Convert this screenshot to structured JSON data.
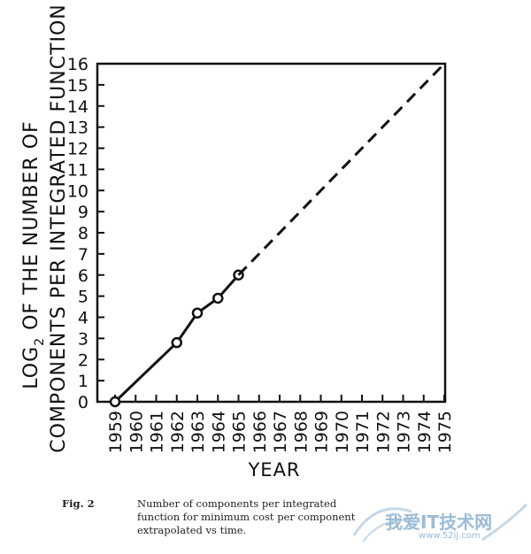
{
  "chart_data": {
    "type": "line",
    "title": "",
    "ylabel_line1": "LOG",
    "ylabel_sub": "2",
    "ylabel_line1_rest": " OF THE NUMBER OF",
    "ylabel_line2": "COMPONENTS PER INTEGRATED FUNCTION",
    "xlabel": "YEAR",
    "xlim": [
      1959,
      1975
    ],
    "ylim": [
      0,
      16
    ],
    "x_ticks": [
      "1959",
      "1960",
      "1961",
      "1962",
      "1963",
      "1964",
      "1965",
      "1966",
      "1967",
      "1968",
      "1969",
      "1970",
      "1971",
      "1972",
      "1973",
      "1974",
      "1975"
    ],
    "y_ticks": [
      "0",
      "1",
      "2",
      "3",
      "4",
      "5",
      "6",
      "7",
      "8",
      "9",
      "10",
      "11",
      "12",
      "13",
      "14",
      "15",
      "16"
    ],
    "series": [
      {
        "style": "solid-with-markers",
        "x": [
          1959,
          1962,
          1963,
          1964,
          1965
        ],
        "y": [
          0,
          2.8,
          4.2,
          4.9,
          6.0
        ]
      },
      {
        "style": "dashed",
        "x": [
          1965,
          1975
        ],
        "y": [
          6.0,
          16
        ]
      }
    ]
  },
  "caption": {
    "fig_label": "Fig. 2",
    "lines": [
      "Number of components per integrated",
      "function for minimum cost per component",
      "extrapolated vs time."
    ]
  },
  "watermark": {
    "text": "我爱IT技术网",
    "url": "www.52ij.com"
  },
  "colors": {
    "ink": "#111111",
    "watermark": "#9bbbd6"
  }
}
